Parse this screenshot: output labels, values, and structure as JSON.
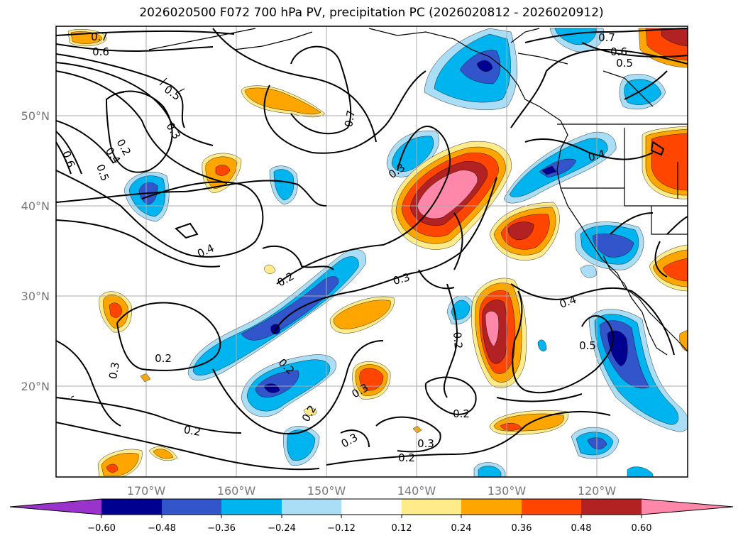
{
  "title": "2026020500 F072 700 hPa PV, precipitation PC (2026020812 - 2026020912)",
  "colors": {
    "neg_extreme": "#9933cc",
    "neg_060": "#000090",
    "neg_048": "#3355cc",
    "neg_036": "#00b4f0",
    "neg_024": "#aadef7",
    "neutral": "#ffffff",
    "pos_012": "#ffeb8a",
    "pos_024": "#ffa500",
    "pos_036": "#ff4500",
    "pos_048": "#b22222",
    "pos_060": "#ff88aa",
    "grid": "#aaaaaa",
    "coast": "#000000"
  },
  "map": {
    "lon_ticks": [
      "170°W",
      "160°W",
      "150°W",
      "140°W",
      "130°W",
      "120°W"
    ],
    "lat_ticks": [
      "50°N",
      "40°N",
      "30°N",
      "20°N"
    ]
  },
  "contour_labels": [
    "0.7",
    "0.6",
    "0.5",
    "0.3",
    "0.2",
    "0.6",
    "0.4",
    "0.5",
    "0.4",
    "0.2",
    "0.7",
    "0.3",
    "0.3",
    "0.2",
    "0.2",
    "0.3",
    "0.2",
    "0.3",
    "0.2",
    "0.2",
    "0.3",
    "0.2",
    "0.3",
    "0.2",
    "0.4",
    "0.5",
    "0.7",
    "0.6",
    "0.5",
    "0.4"
  ],
  "colorbar": {
    "ticks": [
      "−0.60",
      "−0.48",
      "−0.36",
      "−0.24",
      "−0.12",
      "0.12",
      "0.24",
      "0.36",
      "0.48",
      "0.60"
    ]
  }
}
